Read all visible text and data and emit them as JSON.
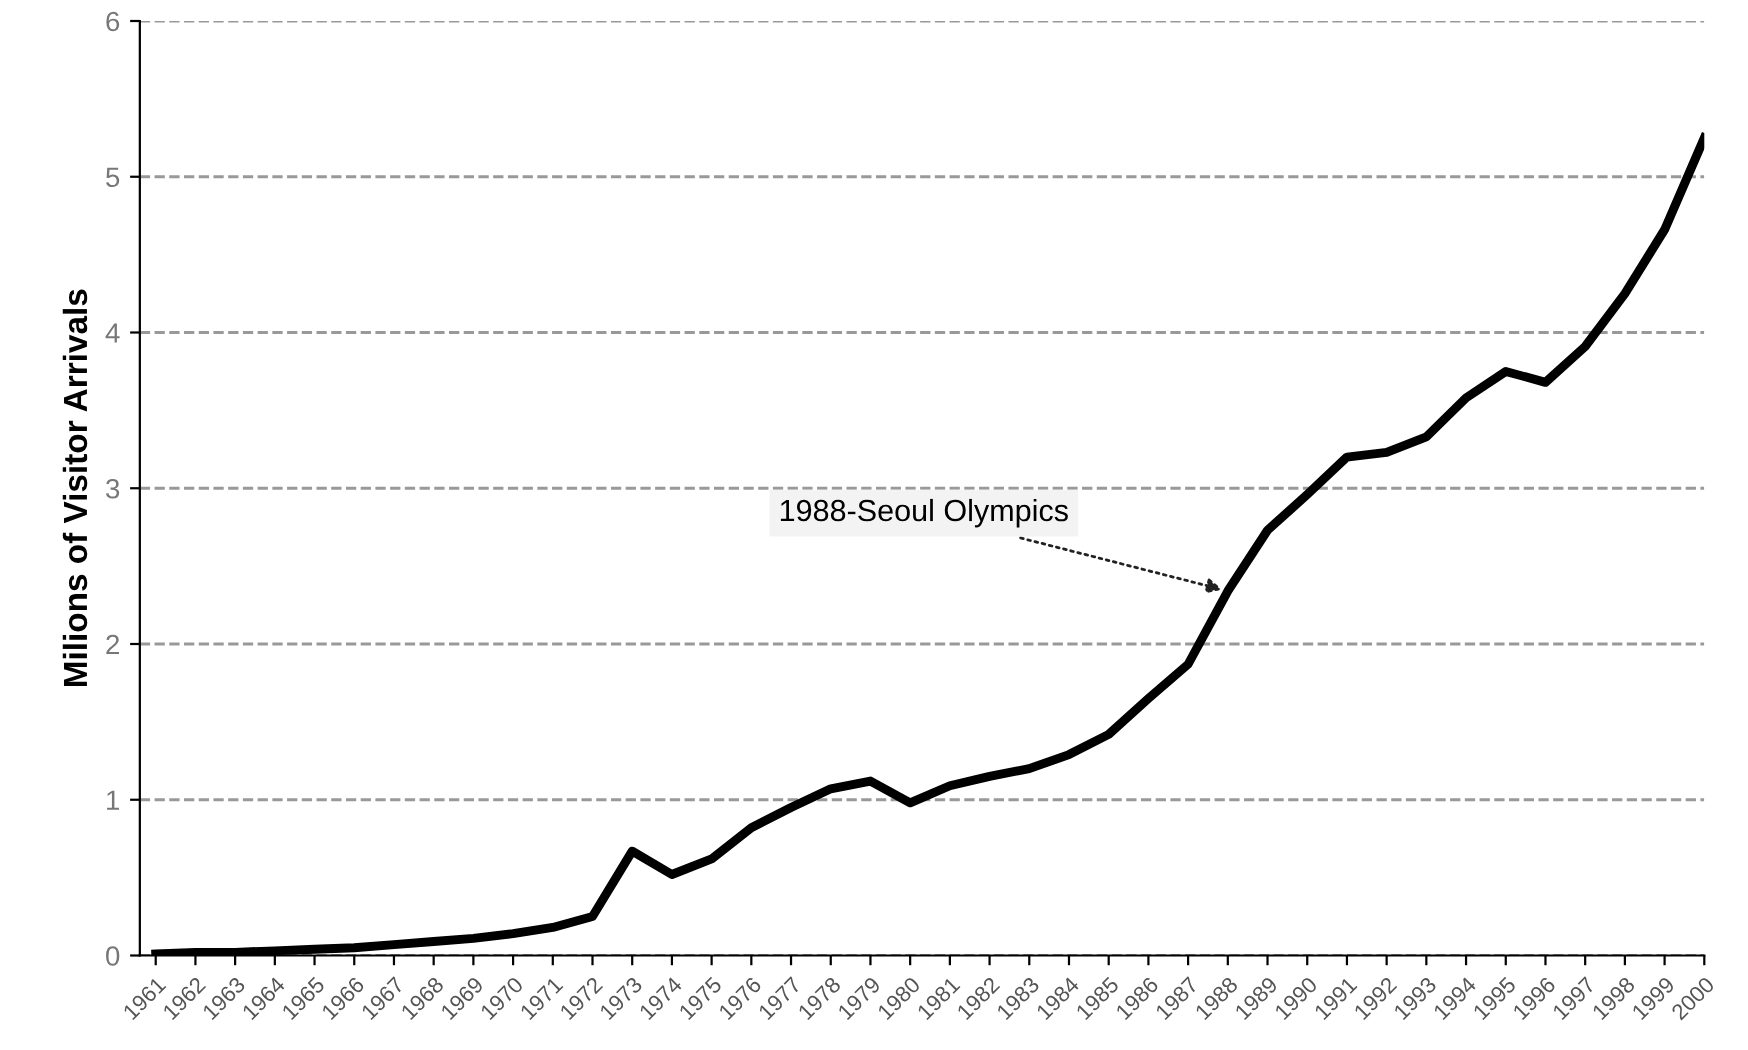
{
  "chart_data": {
    "type": "line",
    "ylabel": "Milions of Visitor Arrivals",
    "categories": [
      "1961",
      "1962",
      "1963",
      "1964",
      "1965",
      "1966",
      "1967",
      "1968",
      "1969",
      "1970",
      "1971",
      "1972",
      "1973",
      "1974",
      "1975",
      "1976",
      "1977",
      "1978",
      "1979",
      "1980",
      "1981",
      "1982",
      "1983",
      "1984",
      "1985",
      "1986",
      "1987",
      "1988",
      "1989",
      "1990",
      "1991",
      "1992",
      "1993",
      "1994",
      "1995",
      "1996",
      "1997",
      "1998",
      "1999",
      "2000"
    ],
    "series": [
      {
        "color": "#000000",
        "values": [
          0.01,
          0.02,
          0.02,
          0.03,
          0.04,
          0.05,
          0.07,
          0.09,
          0.11,
          0.14,
          0.18,
          0.25,
          0.67,
          0.52,
          0.62,
          0.82,
          0.95,
          1.07,
          1.12,
          0.98,
          1.09,
          1.15,
          1.2,
          1.29,
          1.42,
          1.65,
          1.87,
          2.34,
          2.73,
          2.96,
          3.2,
          3.23,
          3.33,
          3.58,
          3.75,
          3.68,
          3.91,
          4.25,
          4.66,
          5.25
        ]
      }
    ],
    "ylim": [
      0,
      6
    ],
    "yticks": [
      0,
      1,
      2,
      3,
      4,
      5,
      6
    ],
    "grid": "y",
    "marker": "none",
    "line_style": "solid",
    "legend": false,
    "annotations": [
      {
        "text": "1988-Seoul Olympics",
        "x": "1988",
        "y": 2.34
      }
    ]
  }
}
